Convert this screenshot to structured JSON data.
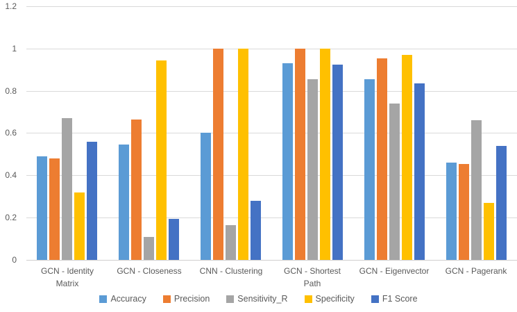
{
  "chart_data": {
    "type": "bar",
    "title": "",
    "xlabel": "",
    "ylabel": "",
    "categories": [
      "GCN - Identity Matrix",
      "GCN - Closeness",
      "CNN - Clustering",
      "GCN - Shortest Path",
      "GCN - Eigenvector",
      "GCN - Pagerank"
    ],
    "series": [
      {
        "name": "Accuracy",
        "color": "#5B9BD5",
        "values": [
          0.49,
          0.545,
          0.6,
          0.93,
          0.855,
          0.46
        ]
      },
      {
        "name": "Precision",
        "color": "#ED7D31",
        "values": [
          0.48,
          0.665,
          1.0,
          1.0,
          0.955,
          0.455
        ]
      },
      {
        "name": "Sensitivity_R",
        "color": "#A5A5A5",
        "values": [
          0.67,
          0.11,
          0.165,
          0.855,
          0.74,
          0.66
        ]
      },
      {
        "name": "Specificity",
        "color": "#FFC000",
        "values": [
          0.32,
          0.945,
          1.0,
          1.0,
          0.97,
          0.27
        ]
      },
      {
        "name": "F1 Score",
        "color": "#4472C4",
        "values": [
          0.56,
          0.195,
          0.28,
          0.925,
          0.835,
          0.54
        ]
      }
    ],
    "y_axis": {
      "min": 0,
      "max": 1.2,
      "step": 0.2,
      "tick_labels": [
        "0",
        "0.2",
        "0.4",
        "0.6",
        "0.8",
        "1",
        "1.2"
      ]
    },
    "grid": true,
    "legend_position": "bottom",
    "colors": {
      "gridline": "#D9D9D9",
      "axis_text": "#595959",
      "background": "#FFFFFF"
    }
  }
}
